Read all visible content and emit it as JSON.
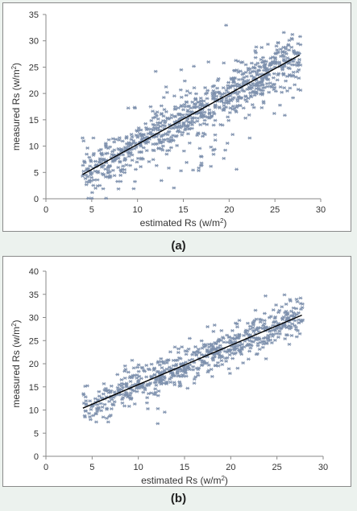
{
  "chart_data": [
    {
      "type": "scatter",
      "panel_label": "(a)",
      "xlabel": "estimated Rs",
      "xlabel_unit_prefix": "(w/m",
      "xlabel_unit_suffix": ")",
      "ylabel": "measured Rs",
      "ylabel_unit_prefix": "(w/m",
      "ylabel_unit_suffix": ")",
      "unit_exponent": "2",
      "xlim": [
        0,
        30
      ],
      "ylim": [
        0,
        35
      ],
      "xticks": [
        "0",
        "5",
        "10",
        "15",
        "20",
        "25",
        "30"
      ],
      "yticks": [
        "0",
        "5",
        "10",
        "15",
        "20",
        "25",
        "30",
        "35"
      ],
      "marker": "asterisk",
      "point_color": "#7d90ad",
      "trend_line": {
        "x": [
          4,
          27.7
        ],
        "y": [
          4.6,
          27.3
        ],
        "color": "#000000"
      },
      "points_summary": {
        "count_approx": 900,
        "x_range": [
          4,
          28
        ],
        "y_range": [
          0,
          33
        ]
      }
    },
    {
      "type": "scatter",
      "panel_label": "(b)",
      "xlabel": "estimated Rs",
      "xlabel_unit_prefix": "(w/m",
      "xlabel_unit_suffix": ")",
      "ylabel": "measured Rs",
      "ylabel_unit_prefix": "(w/m",
      "ylabel_unit_suffix": ")",
      "unit_exponent": "2",
      "xlim": [
        0,
        30
      ],
      "ylim": [
        0,
        40
      ],
      "xticks": [
        "0",
        "5",
        "10",
        "15",
        "20",
        "25",
        "30"
      ],
      "yticks": [
        "0",
        "5",
        "10",
        "15",
        "20",
        "25",
        "30",
        "35",
        "40"
      ],
      "marker": "asterisk",
      "point_color": "#7d90ad",
      "trend_line": {
        "x": [
          4,
          27.7
        ],
        "y": [
          10.4,
          30.5
        ],
        "color": "#000000"
      },
      "points_summary": {
        "count_approx": 700,
        "x_range": [
          4,
          28
        ],
        "y_range": [
          6,
          37
        ]
      }
    }
  ]
}
